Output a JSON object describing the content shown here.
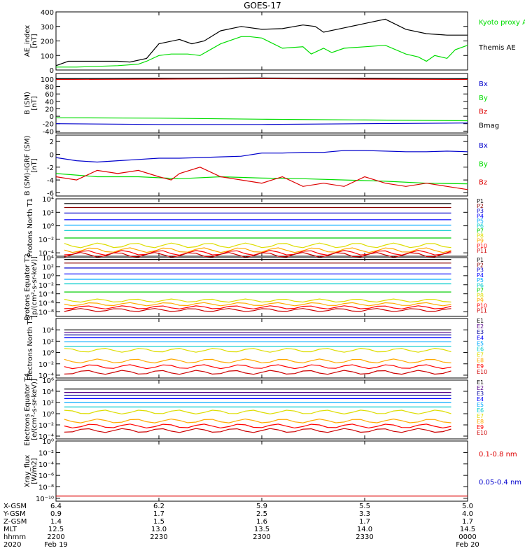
{
  "title": "GOES-17",
  "colors": {
    "black": "#000000",
    "green": "#00dd00",
    "red": "#dd0000",
    "blue": "#0000cc",
    "p_colors": [
      "#000000",
      "#880000",
      "#0000cc",
      "#0000ff",
      "#00aaff",
      "#00cccc",
      "#00cc00",
      "#dddd00",
      "#ffaa00",
      "#ff0000",
      "#cc0000"
    ],
    "e_colors": [
      "#000000",
      "#550088",
      "#000099",
      "#0000ff",
      "#00aaff",
      "#00cccc",
      "#dddd00",
      "#ffaa00",
      "#ff0000",
      "#cc0000"
    ]
  },
  "ephemeris": {
    "labels": [
      "X-GSM",
      "Y-GSM",
      "Z-GSM",
      "MLT",
      "hhmm",
      "2020"
    ],
    "columns": [
      [
        "6.4",
        "0.9",
        "1.4",
        "12.5",
        "2200",
        "Feb 19"
      ],
      [
        "6.2",
        "1.7",
        "1.5",
        "13.0",
        "2230",
        ""
      ],
      [
        "5.9",
        "2.5",
        "1.6",
        "13.5",
        "2300",
        ""
      ],
      [
        "5.5",
        "3.3",
        "1.7",
        "14.0",
        "2330",
        ""
      ],
      [
        "5.0",
        "4.0",
        "1.7",
        "14.5",
        "0000",
        "Feb 20"
      ]
    ]
  },
  "chart_data": [
    {
      "type": "line",
      "ylabel": "AE_index [nT]",
      "ylim": [
        0,
        400
      ],
      "yticks": [
        0,
        100,
        200,
        300,
        400
      ],
      "series": [
        {
          "name": "Kyoto proxy AE",
          "color": "#00dd00",
          "x": [
            0,
            5,
            10,
            15,
            20,
            22,
            25,
            28,
            32,
            35,
            40,
            45,
            47,
            50,
            55,
            60,
            62,
            65,
            67,
            70,
            75,
            80,
            85,
            88,
            90,
            92,
            95,
            97,
            100
          ],
          "y": [
            20,
            20,
            25,
            30,
            40,
            60,
            100,
            110,
            110,
            100,
            180,
            230,
            230,
            220,
            150,
            160,
            110,
            150,
            120,
            150,
            160,
            170,
            110,
            90,
            60,
            100,
            80,
            140,
            170
          ]
        },
        {
          "name": "Themis AE",
          "color": "#000000",
          "x": [
            0,
            3,
            5,
            10,
            15,
            18,
            22,
            25,
            30,
            33,
            36,
            40,
            45,
            50,
            55,
            60,
            63,
            65,
            70,
            75,
            80,
            85,
            90,
            95,
            100
          ],
          "y": [
            30,
            60,
            60,
            60,
            60,
            55,
            80,
            180,
            210,
            180,
            200,
            270,
            300,
            280,
            285,
            310,
            300,
            260,
            290,
            320,
            350,
            280,
            250,
            240,
            240
          ]
        }
      ]
    },
    {
      "type": "line",
      "ylabel": "B (SM) [nT]",
      "ylim": [
        -45,
        115
      ],
      "yticks": [
        -40,
        -20,
        0,
        20,
        40,
        60,
        80,
        100
      ],
      "series": [
        {
          "name": "Bx",
          "color": "#0000cc",
          "x": [
            0,
            25,
            50,
            75,
            100
          ],
          "y": [
            -20,
            -22,
            -22,
            -20,
            -18
          ]
        },
        {
          "name": "By",
          "color": "#00dd00",
          "x": [
            0,
            25,
            50,
            75,
            100
          ],
          "y": [
            -4,
            -5,
            -8,
            -10,
            -12
          ]
        },
        {
          "name": "Bz",
          "color": "#dd0000",
          "x": [
            0,
            25,
            50,
            75,
            100
          ],
          "y": [
            99,
            100,
            101,
            100,
            99
          ]
        },
        {
          "name": "Bmag",
          "color": "#000000",
          "x": [
            0,
            25,
            50,
            75,
            100
          ],
          "y": [
            101,
            102,
            103,
            102,
            101
          ]
        }
      ]
    },
    {
      "type": "line",
      "ylabel": "B (SM)-IGRF (SM) [nT]",
      "ylim": [
        -6.5,
        3
      ],
      "yticks": [
        -6,
        -4,
        -2,
        0,
        2
      ],
      "series": [
        {
          "name": "Bx",
          "color": "#0000cc",
          "x": [
            0,
            5,
            10,
            15,
            20,
            25,
            30,
            35,
            40,
            45,
            50,
            55,
            60,
            65,
            70,
            75,
            80,
            85,
            90,
            95,
            100
          ],
          "y": [
            -0.5,
            -1,
            -1.2,
            -1,
            -0.8,
            -0.6,
            -0.6,
            -0.5,
            -0.4,
            -0.3,
            0.2,
            0.2,
            0.3,
            0.3,
            0.6,
            0.6,
            0.5,
            0.4,
            0.4,
            0.5,
            0.4
          ]
        },
        {
          "name": "By",
          "color": "#00dd00",
          "x": [
            0,
            10,
            20,
            30,
            40,
            50,
            60,
            70,
            80,
            90,
            100
          ],
          "y": [
            -3,
            -3.5,
            -3.5,
            -3.8,
            -3.5,
            -3.7,
            -3.8,
            -4.0,
            -4.2,
            -4.5,
            -4.6
          ]
        },
        {
          "name": "Bz",
          "color": "#dd0000",
          "x": [
            0,
            5,
            10,
            15,
            20,
            25,
            28,
            30,
            35,
            40,
            45,
            50,
            55,
            60,
            65,
            70,
            75,
            80,
            85,
            90,
            95,
            100
          ],
          "y": [
            -3.5,
            -4,
            -2.5,
            -3,
            -2.5,
            -3.5,
            -4,
            -3,
            -2,
            -3.5,
            -4,
            -4.5,
            -3.5,
            -5,
            -4.5,
            -5,
            -3.5,
            -4.5,
            -5,
            -4.5,
            -5,
            -5.5
          ]
        }
      ]
    },
    {
      "type": "line",
      "ylabel": "Protons North T1",
      "log_scale": true,
      "ylim_exp": [
        -4.5,
        4
      ],
      "yticks_exp": [
        -4,
        -2,
        0,
        2,
        4
      ],
      "channels": [
        "P1",
        "P2",
        "P3",
        "P4",
        "P5",
        "P6",
        "P7",
        "P8",
        "P9",
        "P10",
        "P11"
      ],
      "levels_exp": [
        3.3,
        2.7,
        1.9,
        0.9,
        0.1,
        -0.7,
        -1.8,
        -2.9,
        -3.6,
        -4.0,
        -4.3
      ]
    },
    {
      "type": "line",
      "ylabel": "Protons Equator T2 [p/(cm²-s-sr-keV)]",
      "log_scale": true,
      "ylim_exp": [
        -9,
        4
      ],
      "yticks_exp": [
        -8,
        -6,
        -4,
        -2,
        0,
        2,
        4
      ],
      "channels": [
        "P1",
        "P2",
        "P3",
        "P4",
        "P5",
        "P6",
        "P7",
        "P8",
        "P9",
        "P10",
        "P11"
      ],
      "levels_exp": [
        3.6,
        2.8,
        1.7,
        0.4,
        -0.8,
        -1.8,
        -3.6,
        -5.5,
        -6.3,
        -7.0,
        -7.6
      ]
    },
    {
      "type": "line",
      "ylabel": "Electrons North T3",
      "log_scale": true,
      "ylim_exp": [
        -4.5,
        6
      ],
      "yticks_exp": [
        -4,
        -2,
        0,
        2,
        4
      ],
      "channels": [
        "E1",
        "E2",
        "E3",
        "E4",
        "E5",
        "E6",
        "E7",
        "E8",
        "E9",
        "E10"
      ],
      "levels_exp": [
        4.0,
        3.5,
        3.1,
        2.6,
        1.9,
        1.1,
        0.4,
        -1.5,
        -2.5,
        -3.5
      ]
    },
    {
      "type": "line",
      "ylabel": "Electrons Equator T4 [e/(cm²-s-sr-keV)]",
      "log_scale": true,
      "ylim_exp": [
        -4.5,
        6
      ],
      "yticks_exp": [
        -4,
        -2,
        0,
        2,
        4,
        6
      ],
      "channels": [
        "E1",
        "E2",
        "E3",
        "E4",
        "E5",
        "E6",
        "E7",
        "E8",
        "E9",
        "E10"
      ],
      "levels_exp": [
        4.4,
        3.8,
        3.3,
        2.7,
        2.0,
        1.2,
        0.3,
        -1.3,
        -2.2,
        -3.0
      ]
    },
    {
      "type": "line",
      "ylabel": "Xray_flux [W/m2]",
      "log_scale": true,
      "ylim_exp": [
        -10.5,
        0
      ],
      "yticks_exp": [
        -10,
        -8,
        -6,
        -4,
        -2,
        0
      ],
      "series": [
        {
          "name": "0.1-0.8 nm",
          "color": "#dd0000",
          "level_exp": -9.6
        },
        {
          "name": "0.05-0.4 nm",
          "color": "#0000cc",
          "level_exp": null
        }
      ]
    }
  ]
}
